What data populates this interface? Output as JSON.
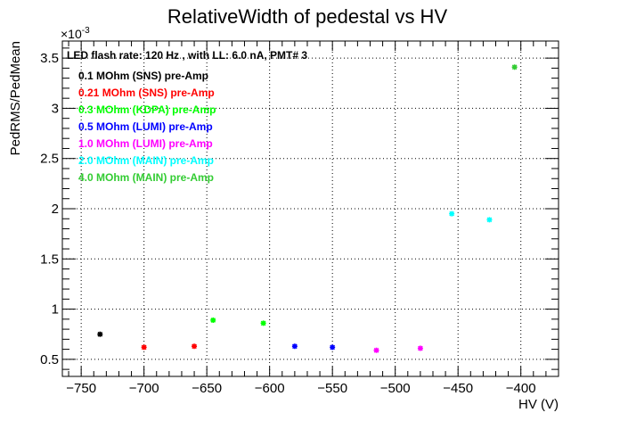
{
  "chart_data": {
    "type": "scatter",
    "title": "RelativeWidth of pedestal vs HV",
    "xlabel": "HV (V)",
    "ylabel": "PedRMS/PedMean",
    "y_exponent_label": "×10",
    "y_exponent_power": "-3",
    "annotation": "LED flash rate: 120 Hz , with LL: 6.0 nA, PMT# 3",
    "xlim": [
      -765,
      -370
    ],
    "ylim": [
      0.33,
      3.67
    ],
    "x_ticks": [
      -750,
      -700,
      -650,
      -600,
      -550,
      -500,
      -450,
      -400
    ],
    "x_tick_labels": [
      "−750",
      "−700",
      "−650",
      "−600",
      "−550",
      "−500",
      "−450",
      "−400"
    ],
    "y_ticks": [
      0.5,
      1,
      1.5,
      2,
      2.5,
      3,
      3.5
    ],
    "y_tick_labels": [
      "0.5",
      "1",
      "1.5",
      "2",
      "2.5",
      "3",
      "3.5"
    ],
    "grid": true,
    "legend_position": "top-left",
    "series": [
      {
        "name": "0.1 MOhm (SNS) pre-Amp",
        "color": "#000000",
        "points": [
          {
            "x": -735,
            "y": 0.75
          }
        ]
      },
      {
        "name": "0.21 MOhm (SNS) pre-Amp",
        "color": "#ff0000",
        "points": [
          {
            "x": -700,
            "y": 0.62
          },
          {
            "x": -660,
            "y": 0.63
          }
        ]
      },
      {
        "name": "0.3 MOhm (KDPA) pre-Amp",
        "color": "#00ff00",
        "points": [
          {
            "x": -645,
            "y": 0.89
          },
          {
            "x": -605,
            "y": 0.86
          }
        ]
      },
      {
        "name": "0.5 MOhm (LUMI) pre-Amp",
        "color": "#0000ff",
        "points": [
          {
            "x": -580,
            "y": 0.63
          },
          {
            "x": -550,
            "y": 0.62
          }
        ]
      },
      {
        "name": "1.0 MOhm (LUMI) pre-Amp",
        "color": "#ff00ff",
        "points": [
          {
            "x": -515,
            "y": 0.59
          },
          {
            "x": -480,
            "y": 0.61
          }
        ]
      },
      {
        "name": "2.0 MOhm (MAIN) pre-Amp",
        "color": "#00ffff",
        "points": [
          {
            "x": -455,
            "y": 1.95
          },
          {
            "x": -425,
            "y": 1.89
          }
        ]
      },
      {
        "name": "4.0 MOhm (MAIN) pre-Amp",
        "color": "#33cc33",
        "points": [
          {
            "x": -405,
            "y": 3.41
          }
        ]
      }
    ]
  }
}
